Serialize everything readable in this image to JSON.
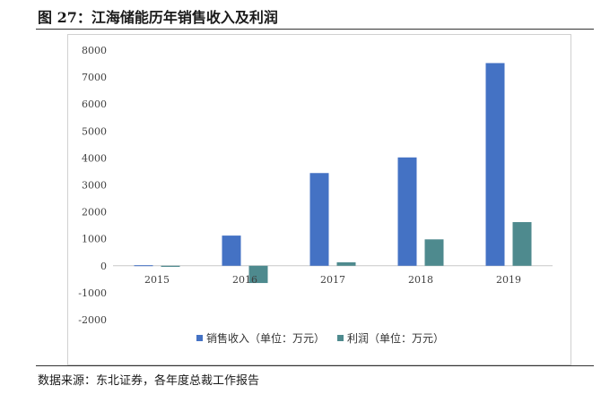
{
  "figure": {
    "title": "图 27：江海储能历年销售收入及利润",
    "source": "数据来源：东北证券，各年度总裁工作报告"
  },
  "chart_data": {
    "type": "bar",
    "categories": [
      "2015",
      "2016",
      "2017",
      "2018",
      "2019"
    ],
    "series": [
      {
        "name": "销售收入（单位：万元）",
        "color": "#4472C4",
        "values": [
          20,
          1120,
          3440,
          4020,
          7520
        ]
      },
      {
        "name": "利润（单位：万元）",
        "color": "#4E8A8E",
        "values": [
          -40,
          -640,
          130,
          980,
          1620
        ]
      }
    ],
    "yticks": [
      -2000,
      -1000,
      0,
      1000,
      2000,
      3000,
      4000,
      5000,
      6000,
      7000,
      8000
    ],
    "ylim": [
      -2000,
      8000
    ],
    "grid": false,
    "legend_position": "bottom"
  }
}
